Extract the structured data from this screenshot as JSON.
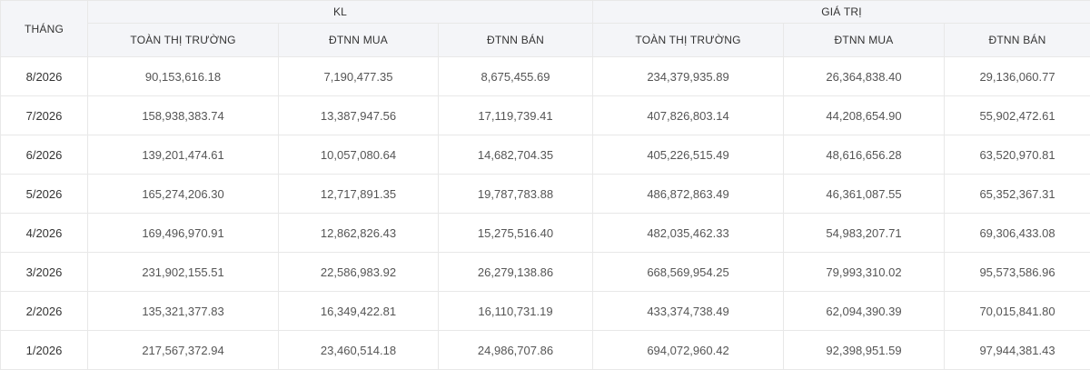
{
  "table": {
    "month_header": "THÁNG",
    "groups": [
      "KL",
      "GIÁ TRỊ"
    ],
    "sub_headers": [
      "TOÀN THỊ TRƯỜNG",
      "ĐTNN MUA",
      "ĐTNN BÁN",
      "TOÀN THỊ TRƯỜNG",
      "ĐTNN MUA",
      "ĐTNN BÁN"
    ],
    "rows": [
      [
        "8/2026",
        "90,153,616.18",
        "7,190,477.35",
        "8,675,455.69",
        "234,379,935.89",
        "26,364,838.40",
        "29,136,060.77"
      ],
      [
        "7/2026",
        "158,938,383.74",
        "13,387,947.56",
        "17,119,739.41",
        "407,826,803.14",
        "44,208,654.90",
        "55,902,472.61"
      ],
      [
        "6/2026",
        "139,201,474.61",
        "10,057,080.64",
        "14,682,704.35",
        "405,226,515.49",
        "48,616,656.28",
        "63,520,970.81"
      ],
      [
        "5/2026",
        "165,274,206.30",
        "12,717,891.35",
        "19,787,783.88",
        "486,872,863.49",
        "46,361,087.55",
        "65,352,367.31"
      ],
      [
        "4/2026",
        "169,496,970.91",
        "12,862,826.43",
        "15,275,516.40",
        "482,035,462.33",
        "54,983,207.71",
        "69,306,433.08"
      ],
      [
        "3/2026",
        "231,902,155.51",
        "22,586,983.92",
        "26,279,138.86",
        "668,569,954.25",
        "79,993,310.02",
        "95,573,586.96"
      ],
      [
        "2/2026",
        "135,321,377.83",
        "16,349,422.81",
        "16,110,731.19",
        "433,374,738.49",
        "62,094,390.39",
        "70,015,841.80"
      ],
      [
        "1/2026",
        "217,567,372.94",
        "23,460,514.18",
        "24,986,707.86",
        "694,072,960.42",
        "92,398,951.59",
        "97,944,381.43"
      ]
    ]
  }
}
